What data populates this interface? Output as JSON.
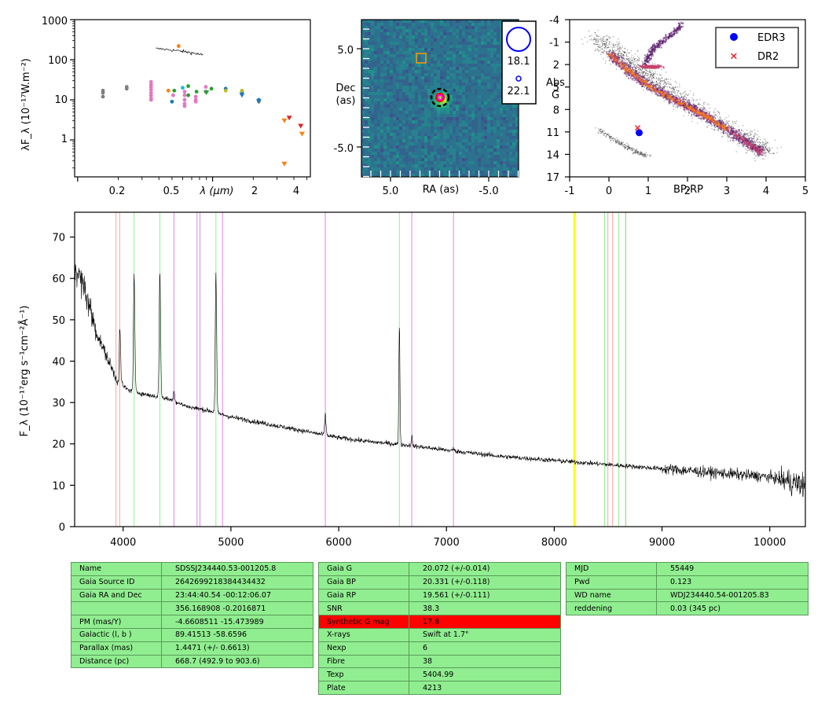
{
  "sed": {
    "ylabel": "λF_λ (10⁻¹⁷W.m⁻²)",
    "xlabel": "λ (μm)",
    "yticks": [
      "1000",
      "100",
      "10",
      "1"
    ],
    "xticks": [
      "0.2",
      "0.5",
      "2",
      "4"
    ],
    "points": [
      {
        "x": 0.154,
        "y": 12,
        "c": "#7f7f7f"
      },
      {
        "x": 0.154,
        "y": 15,
        "c": "#7f7f7f"
      },
      {
        "x": 0.154,
        "y": 17,
        "c": "#7f7f7f"
      },
      {
        "x": 0.231,
        "y": 19,
        "c": "#7f7f7f"
      },
      {
        "x": 0.231,
        "y": 21,
        "c": "#7f7f7f"
      },
      {
        "x": 0.35,
        "y": 28,
        "c": "#e377c2"
      },
      {
        "x": 0.35,
        "y": 24,
        "c": "#e377c2"
      },
      {
        "x": 0.35,
        "y": 21,
        "c": "#e377c2"
      },
      {
        "x": 0.35,
        "y": 18,
        "c": "#e377c2"
      },
      {
        "x": 0.35,
        "y": 15,
        "c": "#e377c2"
      },
      {
        "x": 0.35,
        "y": 13,
        "c": "#e377c2"
      },
      {
        "x": 0.35,
        "y": 11,
        "c": "#e377c2"
      },
      {
        "x": 0.35,
        "y": 10,
        "c": "#e377c2"
      },
      {
        "x": 0.47,
        "y": 17,
        "c": "#ff7f0e"
      },
      {
        "x": 0.5,
        "y": 9,
        "c": "#1f77b4"
      },
      {
        "x": 0.51,
        "y": 13,
        "c": "#e377c2"
      },
      {
        "x": 0.52,
        "y": 17,
        "c": "#2ca02c"
      },
      {
        "x": 0.56,
        "y": 220,
        "c": "#ff7f0e"
      },
      {
        "x": 0.6,
        "y": 20,
        "c": "#17becf"
      },
      {
        "x": 0.62,
        "y": 16,
        "c": "#e377c2"
      },
      {
        "x": 0.62,
        "y": 13,
        "c": "#e377c2"
      },
      {
        "x": 0.62,
        "y": 10,
        "c": "#e377c2"
      },
      {
        "x": 0.62,
        "y": 8,
        "c": "#e377c2"
      },
      {
        "x": 0.62,
        "y": 7,
        "c": "#e377c2"
      },
      {
        "x": 0.66,
        "y": 22,
        "c": "#2ca02c"
      },
      {
        "x": 0.66,
        "y": 13,
        "c": "#2ca02c"
      },
      {
        "x": 0.75,
        "y": 12,
        "c": "#e377c2"
      },
      {
        "x": 0.75,
        "y": 10,
        "c": "#e377c2"
      },
      {
        "x": 0.75,
        "y": 9,
        "c": "#e377c2"
      },
      {
        "x": 0.76,
        "y": 16,
        "c": "#2ca02c"
      },
      {
        "x": 0.89,
        "y": 21,
        "c": "#e377c2"
      },
      {
        "x": 0.89,
        "y": 16,
        "c": "#9467bd"
      },
      {
        "x": 0.98,
        "y": 19,
        "c": "#2ca02c"
      },
      {
        "x": 1.25,
        "y": 19,
        "c": "#1f77b4"
      },
      {
        "x": 1.25,
        "y": 17,
        "c": "#bcbd22"
      },
      {
        "x": 1.65,
        "y": 16,
        "c": "#1f77b4"
      },
      {
        "x": 1.65,
        "y": 17,
        "c": "#bcbd22"
      },
      {
        "x": 2.2,
        "y": 10,
        "c": "#1f77b4"
      },
      {
        "x": 2.2,
        "y": 9,
        "c": "#bcbd22"
      }
    ],
    "upper_limits": [
      {
        "x": 0.9,
        "y": 15,
        "c": "#2ca02c"
      },
      {
        "x": 1.65,
        "y": 13,
        "c": "#1f77b4"
      },
      {
        "x": 2.2,
        "y": 9,
        "c": "#1f77b4"
      },
      {
        "x": 3.4,
        "y": 3,
        "c": "#ff7f0e"
      },
      {
        "x": 3.7,
        "y": 3.5,
        "c": "#d62728"
      },
      {
        "x": 3.4,
        "y": 0.25,
        "c": "#ff7f0e"
      },
      {
        "x": 4.5,
        "y": 2.2,
        "c": "#d62728"
      },
      {
        "x": 4.6,
        "y": 1.4,
        "c": "#ff7f0e"
      }
    ]
  },
  "image": {
    "xlabel": "RA (as)",
    "ylabel_l1": "Dec",
    "ylabel_l2": "(as)",
    "xticks": [
      "5.0",
      "-5.0"
    ],
    "yticks": [
      "5.0",
      "-5.0"
    ],
    "legend": [
      "18.1",
      "22.1"
    ]
  },
  "hrd": {
    "xlabel": "BP-RP",
    "ylabel_l1": "Abs",
    "ylabel_l2": "G",
    "xticks": [
      "-1",
      "0",
      "1",
      "2",
      "3",
      "4",
      "5"
    ],
    "yticks": [
      "-4",
      "-1",
      "2",
      "5",
      "8",
      "11",
      "14",
      "17"
    ],
    "legend": [
      {
        "label": "EDR3",
        "marker": "circle",
        "color": "#0000ff"
      },
      {
        "label": "DR2",
        "marker": "x",
        "color": "#ff0000"
      }
    ],
    "target": {
      "edr3": {
        "bprp": 0.77,
        "g": 11.1
      },
      "dr2": {
        "bprp": 0.73,
        "g": 10.5
      }
    }
  },
  "chart_data": {
    "type": "line",
    "xlabel": "",
    "ylabel": "F_λ (10⁻¹⁷erg s⁻¹cm⁻²Å⁻¹)",
    "xlim": [
      3550,
      10330
    ],
    "ylim": [
      0,
      76
    ],
    "xticks": [
      "4000",
      "5000",
      "6000",
      "7000",
      "8000",
      "9000",
      "10000"
    ],
    "yticks": [
      "0",
      "10",
      "20",
      "30",
      "40",
      "50",
      "60",
      "70"
    ],
    "continuum": [
      {
        "x": 3550,
        "y": 63
      },
      {
        "x": 3650,
        "y": 57
      },
      {
        "x": 3750,
        "y": 47
      },
      {
        "x": 3850,
        "y": 41
      },
      {
        "x": 3950,
        "y": 35
      },
      {
        "x": 4050,
        "y": 33
      },
      {
        "x": 4200,
        "y": 32
      },
      {
        "x": 4400,
        "y": 31
      },
      {
        "x": 4600,
        "y": 29
      },
      {
        "x": 4800,
        "y": 28
      },
      {
        "x": 5000,
        "y": 26.5
      },
      {
        "x": 5300,
        "y": 25
      },
      {
        "x": 5600,
        "y": 23.5
      },
      {
        "x": 6000,
        "y": 21.5
      },
      {
        "x": 6300,
        "y": 20.5
      },
      {
        "x": 6600,
        "y": 19.8
      },
      {
        "x": 7000,
        "y": 18.5
      },
      {
        "x": 7500,
        "y": 17
      },
      {
        "x": 8000,
        "y": 16
      },
      {
        "x": 8500,
        "y": 15
      },
      {
        "x": 9000,
        "y": 14
      },
      {
        "x": 9500,
        "y": 13
      },
      {
        "x": 10000,
        "y": 12
      },
      {
        "x": 10330,
        "y": 10
      }
    ],
    "emission_lines": [
      {
        "x": 3970,
        "peak": 48
      },
      {
        "x": 4102,
        "peak": 61
      },
      {
        "x": 4341,
        "peak": 62
      },
      {
        "x": 4471,
        "peak": 33
      },
      {
        "x": 4861,
        "peak": 61
      },
      {
        "x": 5876,
        "peak": 27
      },
      {
        "x": 6563,
        "peak": 49
      },
      {
        "x": 6678,
        "peak": 22
      },
      {
        "x": 7065,
        "peak": 19
      }
    ],
    "line_markers": [
      {
        "x": 3934,
        "color": "#ff9999"
      },
      {
        "x": 3968,
        "color": "#ff9999"
      },
      {
        "x": 4102,
        "color": "#88ee88"
      },
      {
        "x": 4341,
        "color": "#88ee88"
      },
      {
        "x": 4471,
        "color": "#dd77dd"
      },
      {
        "x": 4686,
        "color": "#dd77dd"
      },
      {
        "x": 4713,
        "color": "#dd77dd"
      },
      {
        "x": 4861,
        "color": "#88ee88"
      },
      {
        "x": 4922,
        "color": "#dd77dd"
      },
      {
        "x": 5876,
        "color": "#dd77dd"
      },
      {
        "x": 6563,
        "color": "#88ee88"
      },
      {
        "x": 6678,
        "color": "#dd77dd"
      },
      {
        "x": 7065,
        "color": "#dd77dd"
      },
      {
        "x": 8183,
        "color": "#ffff00"
      },
      {
        "x": 8195,
        "color": "#ffff00"
      },
      {
        "x": 8467,
        "color": "#88ee88"
      },
      {
        "x": 8498,
        "color": "#ff9999"
      },
      {
        "x": 8542,
        "color": "#ff9999"
      },
      {
        "x": 8598,
        "color": "#88ee88"
      },
      {
        "x": 8662,
        "color": "#ff9999"
      },
      {
        "x": 8665,
        "color": "#88ee88"
      }
    ]
  },
  "tables": {
    "left": [
      [
        "Name",
        "SDSSJ234440.53-001205.8"
      ],
      [
        "Gaia Source ID",
        "2642699218384434432"
      ],
      [
        "Gaia RA and Dec",
        "23:44:40.54    -00:12:06.07"
      ],
      [
        "",
        "356.168908    -0.2016871"
      ],
      [
        "PM (mas/Y)",
        "-4.6608511    -15.473989"
      ],
      [
        "Galactic (l, b )",
        "89.41513    -58.6596"
      ],
      [
        "Parallax (mas)",
        "1.4471 (+/- 0.6613)"
      ],
      [
        "Distance (pc)",
        "668.7 (492.9 to 903.6)"
      ]
    ],
    "middle": [
      [
        "Gaia G",
        "20.072 (+/-0.014)"
      ],
      [
        "Gaia BP",
        "20.331 (+/-0.118)"
      ],
      [
        "Gaia RP",
        "19.561 (+/-0.111)"
      ],
      [
        "SNR",
        "38.3"
      ],
      [
        "Synthetic G mag",
        "17.8"
      ],
      [
        "X-rays",
        "Swift at 1.7\""
      ],
      [
        "Nexp",
        "6"
      ],
      [
        "Fibre",
        "38"
      ],
      [
        "Texp",
        "5404.99"
      ],
      [
        "Plate",
        "4213"
      ]
    ],
    "middle_highlight_row": 4,
    "right": [
      [
        "MJD",
        "55449"
      ],
      [
        "Pwd",
        "0.123"
      ],
      [
        "WD name",
        "WDJ234440.54-001205.83"
      ],
      [
        "reddening",
        "0.03 (345 pc)"
      ]
    ]
  }
}
